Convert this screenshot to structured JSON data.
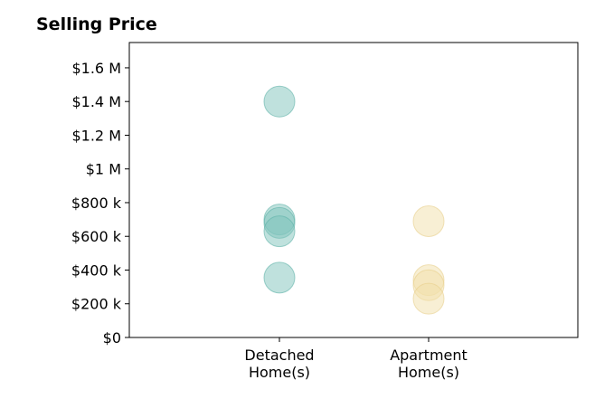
{
  "chart_data": {
    "type": "scatter",
    "title": "Selling Price",
    "xlabel": "",
    "ylabel": "",
    "categories": [
      [
        "Detached",
        "Home(s)"
      ],
      [
        "Apartment",
        "Home(s)"
      ]
    ],
    "y_ticks": [
      {
        "value": 0,
        "label": "$0"
      },
      {
        "value": 200000,
        "label": "$200 k"
      },
      {
        "value": 400000,
        "label": "$400 k"
      },
      {
        "value": 600000,
        "label": "$600 k"
      },
      {
        "value": 800000,
        "label": "$800 k"
      },
      {
        "value": 1000000,
        "label": "$1 M"
      },
      {
        "value": 1200000,
        "label": "$1.2 M"
      },
      {
        "value": 1400000,
        "label": "$1.4 M"
      },
      {
        "value": 1600000,
        "label": "$1.6 M"
      }
    ],
    "ylim": [
      0,
      1750000
    ],
    "grid": false,
    "series": [
      {
        "category": 0,
        "color": "#7fc4bb",
        "stroke": "#5fb3a8",
        "values": [
          1400000,
          700000,
          680000,
          630000,
          355000
        ]
      },
      {
        "category": 1,
        "color": "#f2dfaa",
        "stroke": "#e8cf8a",
        "values": [
          690000,
          340000,
          310000,
          230000
        ]
      }
    ]
  }
}
